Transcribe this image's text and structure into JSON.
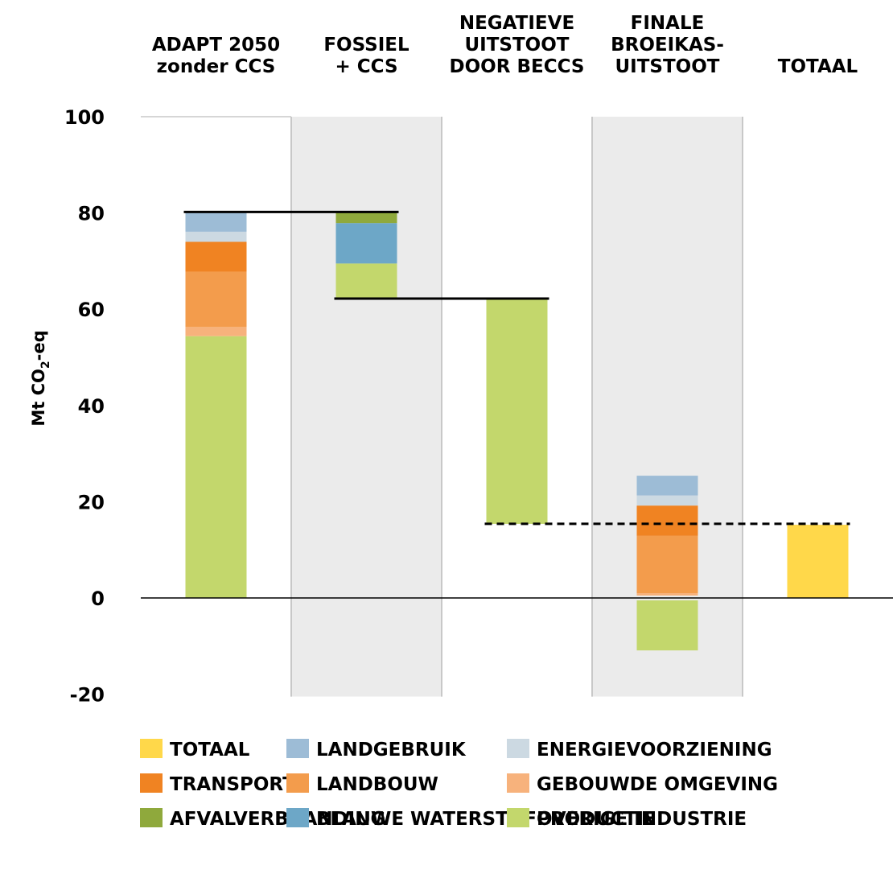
{
  "chart_data": {
    "type": "bar",
    "subtype": "waterfall",
    "title": "",
    "ylabel": "Mt CO₂-eq",
    "ylabel_parts": {
      "main": "Mt CO",
      "sub": "2",
      "tail": "-eq"
    },
    "ylim": [
      -20,
      100
    ],
    "yticks": [
      100,
      80,
      60,
      40,
      20,
      0,
      -20
    ],
    "grid": false,
    "legend_position": "bottom",
    "shaded_columns": [
      1,
      3
    ],
    "categories": [
      [
        "ADAPT 2050",
        "zonder CCS"
      ],
      [
        "FOSSIEL",
        "+ CCS"
      ],
      [
        "NEGATIEVE",
        "UITSTOOT",
        "DOOR BECCS"
      ],
      [
        "FINALE",
        "BROEIKAS-",
        "UITSTOOT"
      ],
      [
        "TOTAAL"
      ]
    ],
    "series": [
      {
        "name": "TOTAAL",
        "color": "#ffd84a"
      },
      {
        "name": "LANDGEBRUIK",
        "color": "#9dbcd6"
      },
      {
        "name": "ENERGIEVOORZIENING",
        "color": "#ccd9e2"
      },
      {
        "name": "TRANSPORT",
        "color": "#f08322"
      },
      {
        "name": "LANDBOUW",
        "color": "#f39c4c"
      },
      {
        "name": "GEBOUWDE OMGEVING",
        "color": "#f7b27c"
      },
      {
        "name": "AFVALVERBRANDING",
        "color": "#8fa93c"
      },
      {
        "name": "BLAUWE WATERSTOFPRODUCTIE",
        "color": "#6da7c7"
      },
      {
        "name": "OVERIGE INDUSTRIE",
        "color": "#c3d76c"
      }
    ],
    "segments": [
      {
        "column": 0,
        "series": "OVERIGE INDUSTRIE",
        "from": 0,
        "to": 54.4
      },
      {
        "column": 0,
        "series": "GEBOUWDE OMGEVING",
        "from": 54.4,
        "to": 56.3
      },
      {
        "column": 0,
        "series": "LANDBOUW",
        "from": 56.3,
        "to": 67.8
      },
      {
        "column": 0,
        "series": "TRANSPORT",
        "from": 67.8,
        "to": 74
      },
      {
        "column": 0,
        "series": "ENERGIEVOORZIENING",
        "from": 74,
        "to": 76.1
      },
      {
        "column": 0,
        "series": "LANDGEBRUIK",
        "from": 76.1,
        "to": 80.2
      },
      {
        "column": 1,
        "series": "OVERIGE INDUSTRIE",
        "from": 62.2,
        "to": 69.5
      },
      {
        "column": 1,
        "series": "BLAUWE WATERSTOFPRODUCTIE",
        "from": 69.5,
        "to": 77.9
      },
      {
        "column": 1,
        "series": "AFVALVERBRANDING",
        "from": 77.9,
        "to": 80.2
      },
      {
        "column": 2,
        "series": "OVERIGE INDUSTRIE",
        "from": 15.4,
        "to": 62.2
      },
      {
        "column": 3,
        "series": "OVERIGE INDUSTRIE",
        "from": -10.9,
        "to": -0.5
      },
      {
        "column": 3,
        "series": "GEBOUWDE OMGEVING",
        "from": 0.5,
        "to": 1
      },
      {
        "column": 3,
        "series": "LANDBOUW",
        "from": 1,
        "to": 12.9
      },
      {
        "column": 3,
        "series": "TRANSPORT",
        "from": 12.9,
        "to": 19.2
      },
      {
        "column": 3,
        "series": "ENERGIEVOORZIENING",
        "from": 19.2,
        "to": 21.3
      },
      {
        "column": 3,
        "series": "LANDGEBRUIK",
        "from": 21.3,
        "to": 25.4
      },
      {
        "column": 4,
        "series": "TOTAAL",
        "from": 0,
        "to": 15.2
      }
    ],
    "connectors": [
      {
        "from_column": 0,
        "to_column": 1,
        "y": 80.2,
        "style": "solid"
      },
      {
        "from_column": 1,
        "to_column": 2,
        "y": 62.2,
        "style": "solid"
      },
      {
        "from_column": 2,
        "to_column": 4,
        "y": 15.4,
        "style": "dashed"
      }
    ]
  }
}
